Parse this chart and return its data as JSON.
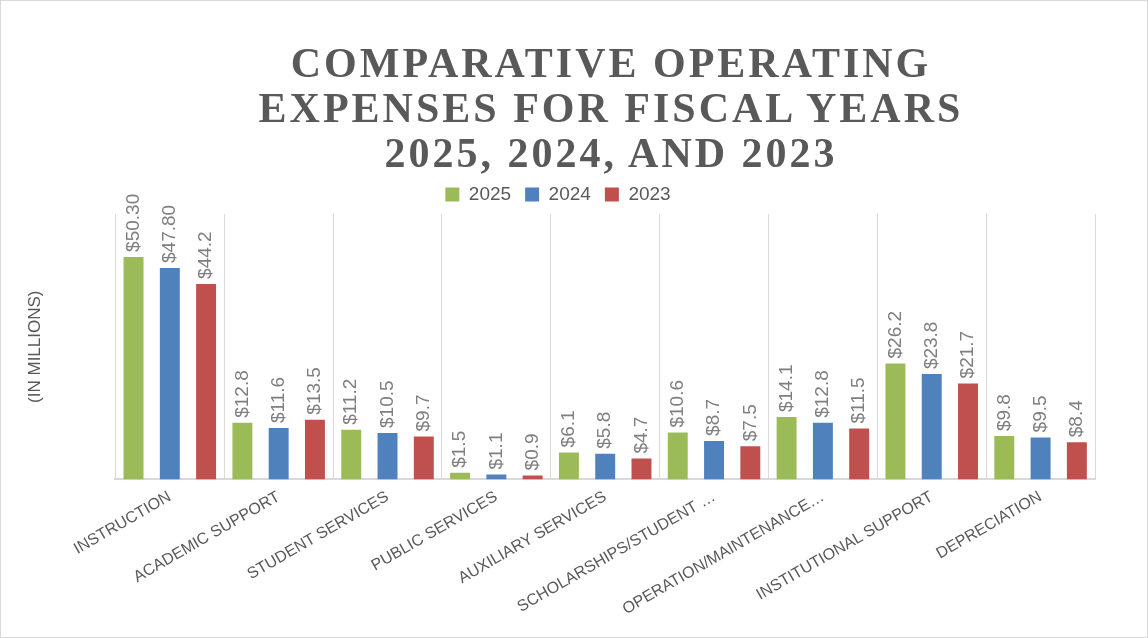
{
  "chart_data": {
    "type": "bar",
    "title": "COMPARATIVE OPERATING EXPENSES FOR FISCAL YEARS 2025, 2024, AND 2023",
    "ylabel": "(IN MILLIONS)",
    "categories": [
      "INSTRUCTION",
      "ACADEMIC SUPPORT",
      "STUDENT SERVICES",
      "PUBLIC SERVICES",
      "AUXILIARY SERVICES",
      "SCHOLARSHIPS/STUDENT …",
      "OPERATION/MAINTENANCE…",
      "INSTITUTIONAL SUPPORT",
      "DEPRECIATION"
    ],
    "series": [
      {
        "name": "2025",
        "color": "#9bbb59",
        "values": [
          50.3,
          12.8,
          11.2,
          1.5,
          6.1,
          10.6,
          14.1,
          26.2,
          9.8
        ],
        "value_labels": [
          "$50.30",
          "$12.8",
          "$11.2",
          "$1.5",
          "$6.1",
          "$10.6",
          "$14.1",
          "$26.2",
          "$9.8"
        ]
      },
      {
        "name": "2024",
        "color": "#4f81bd",
        "values": [
          47.8,
          11.6,
          10.5,
          1.1,
          5.8,
          8.7,
          12.8,
          23.8,
          9.5
        ],
        "value_labels": [
          "$47.80",
          "$11.6",
          "$10.5",
          "$1.1",
          "$5.8",
          "$8.7",
          "$12.8",
          "$23.8",
          "$9.5"
        ]
      },
      {
        "name": "2023",
        "color": "#c0504d",
        "values": [
          44.2,
          13.5,
          9.7,
          0.9,
          4.7,
          7.5,
          11.5,
          21.7,
          8.4
        ],
        "value_labels": [
          "$44.2",
          "$13.5",
          "$9.7",
          "$0.9",
          "$4.7",
          "$7.5",
          "$11.5",
          "$21.7",
          "$8.4"
        ]
      }
    ],
    "grid": "x",
    "legend": "top"
  }
}
